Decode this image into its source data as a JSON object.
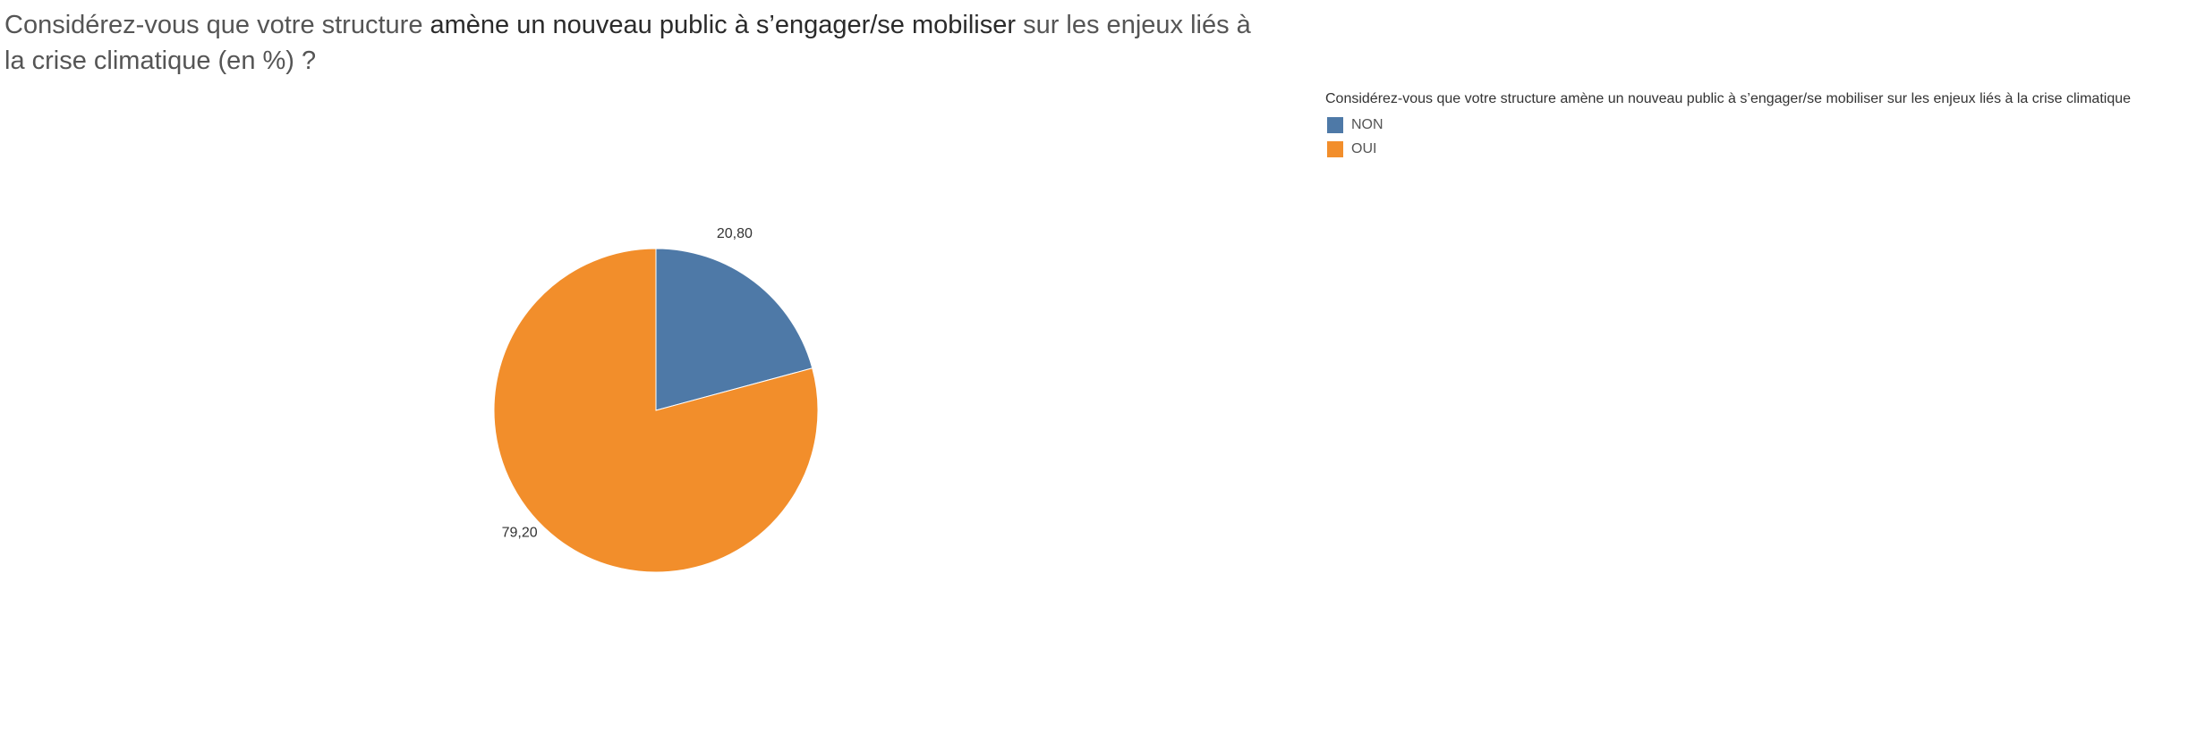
{
  "title": {
    "part1": "Considérez-vous que votre structure ",
    "bold": "amène un nouveau public à s’engager/se mobiliser",
    "part2": " sur les enjeux liés à la crise climatique (en %) ?"
  },
  "chart_data": {
    "type": "pie",
    "title": "Considérez-vous que votre structure amène un nouveau public à s’engager/se mobiliser sur les enjeux liés à la crise climatique (en %) ?",
    "legend_title": "Considérez-vous que votre structure amène un nouveau public à s’engager/se mobiliser sur les enjeux liés à la crise climatique",
    "legend_position": "top-right",
    "slices": [
      {
        "name": "NON",
        "value": 20.8,
        "label": "20,80",
        "color": "#4e79a7"
      },
      {
        "name": "OUI",
        "value": 79.2,
        "label": "79,20",
        "color": "#f28e2b"
      }
    ]
  }
}
